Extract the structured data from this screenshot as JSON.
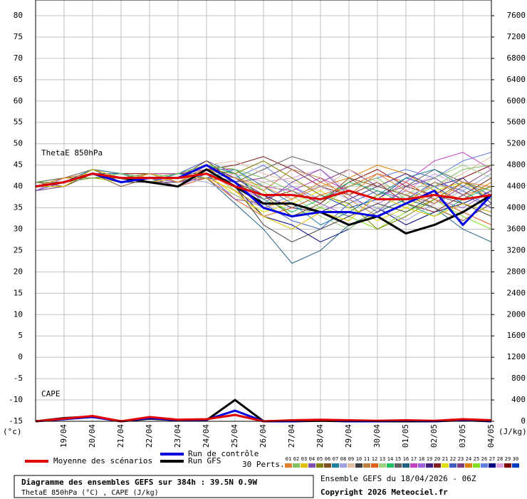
{
  "chart_data": {
    "type": "line",
    "title": "Diagramme des ensembles GEFS sur 384h : 39.5N 0.9W",
    "subtitle": "ThetaE 850hPa (°C) , CAPE (J/kg)",
    "run_label": "Ensemble GEFS du 18/04/2026 - 06Z",
    "copyright": "Copyright 2026 Meteociel.fr",
    "annotations": [
      "ThetaE 850hPa",
      "CAPE"
    ],
    "y_unit": "(°c)",
    "y2_unit": "(J/kg)",
    "perts_label": "30 Perts.",
    "x": [
      0,
      24,
      48,
      72,
      96,
      120,
      144,
      168,
      192,
      216,
      240,
      264,
      288,
      312,
      336,
      360,
      384
    ],
    "xlim": [
      0,
      384
    ],
    "xticks": [
      {
        "value": 24,
        "label": "19/04"
      },
      {
        "value": 48,
        "label": "20/04"
      },
      {
        "value": 72,
        "label": "21/04"
      },
      {
        "value": 96,
        "label": "22/04"
      },
      {
        "value": 120,
        "label": "23/04"
      },
      {
        "value": 144,
        "label": "24/04"
      },
      {
        "value": 168,
        "label": "25/04"
      },
      {
        "value": 192,
        "label": "26/04"
      },
      {
        "value": 216,
        "label": "27/04"
      },
      {
        "value": 240,
        "label": "28/04"
      },
      {
        "value": 264,
        "label": "29/04"
      },
      {
        "value": 288,
        "label": "30/04"
      },
      {
        "value": 312,
        "label": "01/05"
      },
      {
        "value": 336,
        "label": "02/05"
      },
      {
        "value": 360,
        "label": "03/05"
      },
      {
        "value": 384,
        "label": "04/05"
      }
    ],
    "ylim": [
      -15,
      80
    ],
    "yticks": [
      -15,
      -10,
      -5,
      0,
      5,
      10,
      15,
      20,
      25,
      30,
      35,
      40,
      45,
      50,
      55,
      60,
      65,
      70,
      75,
      80
    ],
    "y2lim": [
      0,
      7600
    ],
    "y2ticks": [
      0,
      400,
      800,
      1200,
      1600,
      2000,
      2400,
      2800,
      3200,
      3600,
      4000,
      4400,
      4800,
      5200,
      5600,
      6000,
      6400,
      6800,
      7200,
      7600
    ],
    "grid": true,
    "series": [
      {
        "name": "Moyenne des scénarios",
        "color": "#e00000",
        "values": [
          40,
          41,
          43,
          42,
          42,
          42,
          43,
          40,
          38,
          38,
          37,
          39,
          37,
          37,
          38,
          37,
          38
        ]
      },
      {
        "name": "Run de contrôle",
        "color": "#0000e0",
        "values": [
          40,
          41,
          43,
          41,
          42,
          42,
          45,
          41,
          35,
          33,
          34,
          34,
          33,
          36,
          39,
          31,
          38
        ]
      },
      {
        "name": "Run GFS",
        "color": "#000000",
        "values": [
          40,
          41,
          43,
          42,
          41,
          40,
          44,
          40,
          36,
          36,
          34,
          31,
          33,
          29,
          31,
          34,
          38
        ]
      },
      {
        "name": "01",
        "color": "#e08030",
        "values": [
          40,
          42,
          43,
          41,
          43,
          41,
          44,
          42,
          40,
          37,
          41,
          38,
          43,
          39,
          36,
          41,
          40
        ]
      },
      {
        "name": "02",
        "color": "#80c060",
        "values": [
          41,
          41,
          42,
          43,
          42,
          43,
          45,
          44,
          42,
          39,
          35,
          40,
          42,
          37,
          40,
          44,
          45
        ]
      },
      {
        "name": "03",
        "color": "#e0c000",
        "values": [
          40,
          40,
          44,
          42,
          41,
          42,
          42,
          39,
          33,
          30,
          34,
          32,
          38,
          35,
          33,
          36,
          34
        ]
      },
      {
        "name": "04",
        "color": "#8050b0",
        "values": [
          39,
          41,
          43,
          41,
          42,
          40,
          43,
          37,
          36,
          41,
          44,
          38,
          34,
          40,
          42,
          38,
          35
        ]
      },
      {
        "name": "05",
        "color": "#808000",
        "values": [
          40,
          42,
          42,
          42,
          43,
          41,
          44,
          43,
          46,
          42,
          38,
          36,
          30,
          33,
          37,
          41,
          39
        ]
      },
      {
        "name": "06",
        "color": "#805020",
        "values": [
          41,
          40,
          43,
          40,
          42,
          42,
          46,
          41,
          38,
          33,
          36,
          42,
          40,
          38,
          35,
          32,
          36
        ]
      },
      {
        "name": "07",
        "color": "#2080a0",
        "values": [
          40,
          41,
          44,
          43,
          41,
          43,
          42,
          44,
          40,
          36,
          31,
          34,
          38,
          42,
          44,
          40,
          37
        ]
      },
      {
        "name": "08",
        "color": "#a0a0e0",
        "values": [
          39,
          41,
          43,
          41,
          42,
          42,
          41,
          38,
          35,
          38,
          40,
          37,
          35,
          32,
          36,
          39,
          43
        ]
      },
      {
        "name": "09",
        "color": "#e0c0a0",
        "values": [
          40,
          42,
          43,
          42,
          43,
          41,
          45,
          46,
          43,
          41,
          39,
          44,
          41,
          38,
          40,
          43,
          47
        ]
      },
      {
        "name": "10",
        "color": "#404040",
        "values": [
          41,
          41,
          42,
          42,
          42,
          43,
          43,
          40,
          31,
          27,
          30,
          33,
          36,
          34,
          38,
          36,
          33
        ]
      },
      {
        "name": "11",
        "color": "#c08040",
        "values": [
          40,
          40,
          44,
          43,
          41,
          42,
          44,
          42,
          39,
          44,
          42,
          37,
          33,
          36,
          41,
          38,
          40
        ]
      },
      {
        "name": "12",
        "color": "#e06020",
        "values": [
          40,
          42,
          43,
          41,
          42,
          40,
          42,
          37,
          33,
          35,
          38,
          40,
          43,
          41,
          37,
          34,
          31
        ]
      },
      {
        "name": "13",
        "color": "#a0d080",
        "values": [
          39,
          41,
          42,
          42,
          43,
          42,
          44,
          39,
          41,
          38,
          33,
          30,
          35,
          38,
          42,
          45,
          42
        ]
      },
      {
        "name": "14",
        "color": "#20c060",
        "values": [
          40,
          41,
          43,
          42,
          42,
          43,
          45,
          43,
          37,
          34,
          37,
          41,
          39,
          36,
          33,
          37,
          40
        ]
      },
      {
        "name": "15",
        "color": "#606060",
        "values": [
          41,
          42,
          44,
          41,
          41,
          41,
          43,
          41,
          44,
          47,
          45,
          42,
          38,
          40,
          44,
          41,
          38
        ]
      },
      {
        "name": "16",
        "color": "#206080",
        "values": [
          40,
          40,
          43,
          43,
          42,
          42,
          42,
          36,
          30,
          22,
          25,
          31,
          34,
          37,
          35,
          30,
          27
        ]
      },
      {
        "name": "17",
        "color": "#c040c0",
        "values": [
          40,
          41,
          42,
          42,
          43,
          43,
          44,
          44,
          40,
          39,
          42,
          39,
          37,
          41,
          46,
          48,
          44
        ]
      },
      {
        "name": "18",
        "color": "#a060e0",
        "values": [
          39,
          42,
          43,
          41,
          42,
          41,
          43,
          40,
          37,
          40,
          36,
          33,
          36,
          39,
          37,
          35,
          39
        ]
      },
      {
        "name": "19",
        "color": "#402080",
        "values": [
          40,
          41,
          44,
          42,
          41,
          42,
          45,
          42,
          38,
          35,
          34,
          37,
          40,
          43,
          40,
          42,
          36
        ]
      },
      {
        "name": "20",
        "color": "#802020",
        "values": [
          41,
          41,
          43,
          42,
          42,
          40,
          44,
          45,
          47,
          44,
          40,
          38,
          41,
          36,
          34,
          38,
          42
        ]
      },
      {
        "name": "21",
        "color": "#e0e000",
        "values": [
          40,
          42,
          42,
          41,
          43,
          42,
          43,
          38,
          34,
          36,
          39,
          35,
          32,
          35,
          39,
          41,
          37
        ]
      },
      {
        "name": "22",
        "color": "#4060c0",
        "values": [
          40,
          41,
          43,
          43,
          42,
          43,
          46,
          43,
          36,
          32,
          30,
          36,
          39,
          37,
          41,
          39,
          35
        ]
      },
      {
        "name": "23",
        "color": "#804080",
        "values": [
          39,
          40,
          43,
          42,
          41,
          41,
          42,
          41,
          42,
          45,
          41,
          44,
          40,
          38,
          36,
          40,
          44
        ]
      },
      {
        "name": "24",
        "color": "#e08000",
        "values": [
          40,
          41,
          44,
          41,
          42,
          42,
          44,
          39,
          35,
          37,
          40,
          42,
          45,
          43,
          39,
          37,
          41
        ]
      },
      {
        "name": "25",
        "color": "#80e020",
        "values": [
          41,
          42,
          43,
          42,
          43,
          43,
          45,
          44,
          39,
          33,
          35,
          33,
          30,
          34,
          37,
          33,
          30
        ]
      },
      {
        "name": "26",
        "color": "#6080e0",
        "values": [
          40,
          41,
          42,
          42,
          42,
          41,
          43,
          42,
          45,
          40,
          37,
          40,
          42,
          44,
          42,
          46,
          48
        ]
      },
      {
        "name": "27",
        "color": "#000080",
        "values": [
          40,
          40,
          43,
          41,
          41,
          42,
          44,
          40,
          33,
          31,
          27,
          30,
          35,
          31,
          34,
          36,
          39
        ]
      },
      {
        "name": "28",
        "color": "#e0a0e0",
        "values": [
          39,
          42,
          43,
          42,
          42,
          40,
          42,
          43,
          41,
          42,
          44,
          39,
          36,
          39,
          43,
          40,
          38
        ]
      },
      {
        "name": "29",
        "color": "#800000",
        "values": [
          40,
          41,
          44,
          43,
          43,
          43,
          45,
          41,
          37,
          39,
          36,
          41,
          44,
          40,
          38,
          42,
          45
        ]
      },
      {
        "name": "30",
        "color": "#0040c0",
        "values": [
          41,
          41,
          43,
          42,
          42,
          42,
          43,
          40,
          38,
          35,
          38,
          35,
          37,
          42,
          40,
          36,
          34
        ]
      }
    ],
    "cape_series": [
      {
        "color": "#e00000",
        "axis": "y2",
        "values": [
          0,
          50,
          100,
          0,
          80,
          30,
          40,
          120,
          0,
          20,
          30,
          20,
          10,
          20,
          10,
          40,
          20
        ]
      },
      {
        "color": "#0000e0",
        "axis": "y2",
        "values": [
          0,
          40,
          80,
          0,
          60,
          20,
          30,
          200,
          0,
          0,
          20,
          0,
          0,
          10,
          0,
          30,
          0
        ]
      },
      {
        "color": "#000000",
        "axis": "y2",
        "values": [
          0,
          60,
          90,
          0,
          50,
          20,
          20,
          400,
          0,
          0,
          10,
          0,
          0,
          0,
          0,
          20,
          0
        ]
      }
    ]
  }
}
